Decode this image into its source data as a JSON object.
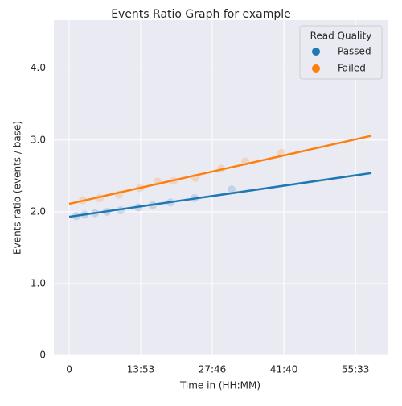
{
  "chart_data": {
    "type": "scatter",
    "title": "Events Ratio Graph for example",
    "x_label": "Time in (HH:MM)",
    "y_label": "Events ratio (events / base)",
    "legend_title": "Read Quality",
    "legend_position": "upper right",
    "grid": true,
    "xlim": [
      -178,
      3706
    ],
    "ylim": [
      0,
      4.67
    ],
    "xticks": [
      0,
      {
        "value": 833,
        "label": "13:53"
      },
      {
        "value": 1666,
        "label": "27:46"
      },
      {
        "value": 2500,
        "label": "41:40"
      },
      {
        "value": 3333,
        "label": "55:33"
      }
    ],
    "yticks": [
      0,
      {
        "value": 1,
        "label": "1.0"
      },
      {
        "value": 2,
        "label": "2.0"
      },
      {
        "value": 3,
        "label": "3.0"
      },
      {
        "value": 4,
        "label": "4.0"
      }
    ],
    "series": [
      {
        "name": "Passed",
        "color": "#1f77b4",
        "x": [
          84,
          178,
          300,
          440,
          599,
          805,
          973,
          1179,
          1460,
          1891
        ],
        "values": [
          1.94,
          1.96,
          1.98,
          2.0,
          2.02,
          2.06,
          2.09,
          2.13,
          2.19,
          2.31
        ],
        "trend_x": [
          0,
          3519
        ],
        "trend": [
          1.93,
          2.54
        ]
      },
      {
        "name": "Failed",
        "color": "#ff7f0e",
        "x": [
          159,
          356,
          580,
          824,
          1030,
          1217,
          1470,
          1769,
          2050,
          2471
        ],
        "values": [
          2.16,
          2.19,
          2.24,
          2.33,
          2.42,
          2.43,
          2.47,
          2.6,
          2.7,
          2.82
        ],
        "trend_x": [
          0,
          3519
        ],
        "trend": [
          2.11,
          3.06
        ]
      }
    ]
  }
}
